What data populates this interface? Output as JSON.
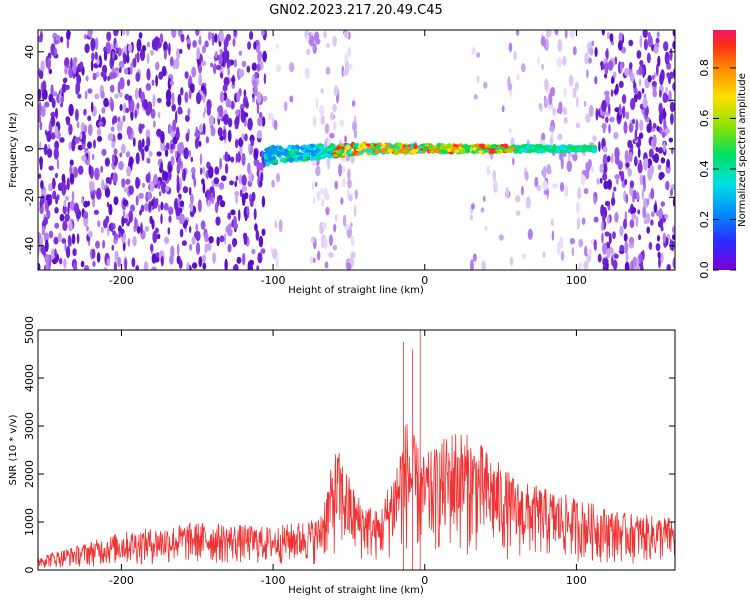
{
  "title": "GN02.2023.217.20.49.C45",
  "colors": {
    "snr_line": "#f03232",
    "noise_dark": "#6a1fd0",
    "noise_light": "#c9a6f0",
    "colormap": [
      "#7a00d8",
      "#2a2cff",
      "#0090ff",
      "#00e0e0",
      "#00e060",
      "#8ee000",
      "#ffe000",
      "#ff8a00",
      "#ff2a1a",
      "#f0186a"
    ]
  },
  "chart_data": [
    {
      "type": "heatmap",
      "name": "spectrogram",
      "xlabel": "Height of straight line (km)",
      "ylabel": "Frequency (Hz)",
      "xlim": [
        -255,
        165
      ],
      "ylim": [
        -50,
        49
      ],
      "xticks": [
        -200,
        -100,
        0,
        100
      ],
      "yticks": [
        -40,
        -20,
        0,
        20,
        40
      ],
      "colorbar": {
        "label": "Normalized spectral amplitude",
        "range": [
          0.0,
          0.95
        ],
        "ticks": [
          "0.0",
          "0.2",
          "0.4",
          "0.6",
          "0.8"
        ]
      },
      "features": {
        "signal_band": {
          "x_start": -105,
          "x_end": 112,
          "freq_center": 0,
          "peak_x": [
            -40,
            20
          ]
        },
        "noise_floor_regions": [
          [
            -255,
            -105
          ],
          [
            112,
            165
          ]
        ]
      }
    },
    {
      "type": "line",
      "name": "snr",
      "xlabel": "Height of straight line (km)",
      "ylabel": "SNR (10 * v/v)",
      "xlim": [
        -255,
        165
      ],
      "ylim": [
        0,
        5000
      ],
      "xticks": [
        -200,
        -100,
        0,
        100
      ],
      "yticks": [
        0,
        1000,
        2000,
        3000,
        4000,
        5000
      ],
      "envelope": [
        {
          "x": -255,
          "y": 300
        },
        {
          "x": -230,
          "y": 500
        },
        {
          "x": -200,
          "y": 800
        },
        {
          "x": -150,
          "y": 1000
        },
        {
          "x": -100,
          "y": 900
        },
        {
          "x": -70,
          "y": 1100
        },
        {
          "x": -58,
          "y": 2600
        },
        {
          "x": -45,
          "y": 1600
        },
        {
          "x": -30,
          "y": 1200
        },
        {
          "x": -20,
          "y": 2200
        },
        {
          "x": -12,
          "y": 3200
        },
        {
          "x": -2,
          "y": 2400
        },
        {
          "x": 5,
          "y": 2500
        },
        {
          "x": 20,
          "y": 3000
        },
        {
          "x": 35,
          "y": 2700
        },
        {
          "x": 60,
          "y": 1900
        },
        {
          "x": 100,
          "y": 1500
        },
        {
          "x": 130,
          "y": 1200
        },
        {
          "x": 165,
          "y": 1100
        }
      ],
      "spikes": [
        {
          "x": -14,
          "y": 4750
        },
        {
          "x": -8,
          "y": 4600
        },
        {
          "x": -3,
          "y": 5000
        }
      ]
    }
  ]
}
